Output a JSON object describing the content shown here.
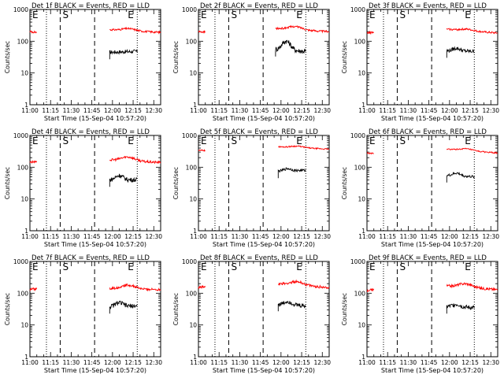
{
  "figure": {
    "xlabel": "Start Time (15-Sep-04 10:57:20)",
    "ylabel": "Counts/sec",
    "x_ticks": [
      "11:00",
      "11:15",
      "11:30",
      "11:45",
      "12:00",
      "12:15",
      "12:30"
    ],
    "y_ticks": [
      "1",
      "10",
      "100",
      "1000"
    ],
    "marker_labels": {
      "E_left": "E",
      "S": "S",
      "E_right": "E"
    },
    "colors": {
      "events": "#000000",
      "lld": "#ff0000",
      "axes": "#000000",
      "background": "#ffffff"
    }
  },
  "chart_data": [
    {
      "type": "line",
      "title": "Det 1f BLACK = Events, RED = LLD",
      "yscale": "log",
      "ylim": [
        1,
        1000
      ],
      "xlim": [
        "11:00",
        "12:35"
      ],
      "series": [
        {
          "name": "Events",
          "color": "#000000",
          "x_range": [
            "11:58",
            "12:18"
          ],
          "start": 45,
          "end": 48,
          "jitter": 0.06
        },
        {
          "name": "LLD",
          "color": "#ff0000",
          "x_range": [
            "11:00",
            "11:05"
          ],
          "start": 200,
          "end": 190,
          "jitter": 0.03
        },
        {
          "name": "LLD",
          "color": "#ff0000",
          "x_range": [
            "11:58",
            "12:35"
          ],
          "start": 230,
          "end": 190,
          "jitter": 0.03,
          "bump": 250
        }
      ],
      "markers": [
        {
          "time": "11:12",
          "style": "dotted",
          "label": "E"
        },
        {
          "time": "11:22",
          "style": "dashed",
          "label": "S"
        },
        {
          "time": "11:47",
          "style": "dashed",
          "label": ""
        },
        {
          "time": "12:18",
          "style": "dotted",
          "label": "E"
        }
      ]
    },
    {
      "type": "line",
      "title": "Det 2f BLACK = Events, RED = LLD",
      "yscale": "log",
      "ylim": [
        1,
        1000
      ],
      "xlim": [
        "11:00",
        "12:35"
      ],
      "series": [
        {
          "name": "Events",
          "color": "#000000",
          "x_range": [
            "11:56",
            "12:18"
          ],
          "start": 55,
          "end": 48,
          "jitter": 0.08,
          "bump": 100
        },
        {
          "name": "LLD",
          "color": "#ff0000",
          "x_range": [
            "11:00",
            "11:05"
          ],
          "start": 200,
          "end": 195,
          "jitter": 0.03
        },
        {
          "name": "LLD",
          "color": "#ff0000",
          "x_range": [
            "11:56",
            "12:35"
          ],
          "start": 250,
          "end": 200,
          "jitter": 0.03,
          "bump": 290
        }
      ],
      "markers": [
        {
          "time": "11:12",
          "style": "dotted",
          "label": "E"
        },
        {
          "time": "11:22",
          "style": "dashed",
          "label": "S"
        },
        {
          "time": "11:47",
          "style": "dashed",
          "label": ""
        },
        {
          "time": "12:18",
          "style": "dotted",
          "label": "E"
        }
      ]
    },
    {
      "type": "line",
      "title": "Det 3f BLACK = Events, RED = LLD",
      "yscale": "log",
      "ylim": [
        1,
        1000
      ],
      "xlim": [
        "11:00",
        "12:35"
      ],
      "series": [
        {
          "name": "Events",
          "color": "#000000",
          "x_range": [
            "11:58",
            "12:18"
          ],
          "start": 50,
          "end": 48,
          "jitter": 0.06,
          "bump": 60
        },
        {
          "name": "LLD",
          "color": "#ff0000",
          "x_range": [
            "11:00",
            "11:05"
          ],
          "start": 180,
          "end": 190,
          "jitter": 0.03
        },
        {
          "name": "LLD",
          "color": "#ff0000",
          "x_range": [
            "11:58",
            "12:35"
          ],
          "start": 240,
          "end": 180,
          "jitter": 0.03,
          "bump": 240
        }
      ],
      "markers": [
        {
          "time": "11:12",
          "style": "dotted",
          "label": "E"
        },
        {
          "time": "11:22",
          "style": "dashed",
          "label": "S"
        },
        {
          "time": "11:47",
          "style": "dashed",
          "label": ""
        },
        {
          "time": "12:18",
          "style": "dotted",
          "label": "E"
        }
      ]
    },
    {
      "type": "line",
      "title": "Det 4f BLACK = Events, RED = LLD",
      "yscale": "log",
      "ylim": [
        1,
        1000
      ],
      "xlim": [
        "11:00",
        "12:35"
      ],
      "series": [
        {
          "name": "Events",
          "color": "#000000",
          "x_range": [
            "11:58",
            "12:18"
          ],
          "start": 40,
          "end": 40,
          "jitter": 0.07,
          "bump": 55
        },
        {
          "name": "LLD",
          "color": "#ff0000",
          "x_range": [
            "11:00",
            "11:05"
          ],
          "start": 140,
          "end": 150,
          "jitter": 0.04
        },
        {
          "name": "LLD",
          "color": "#ff0000",
          "x_range": [
            "11:58",
            "12:35"
          ],
          "start": 170,
          "end": 140,
          "jitter": 0.04,
          "bump": 210
        }
      ],
      "markers": [
        {
          "time": "11:12",
          "style": "dotted",
          "label": "E"
        },
        {
          "time": "11:22",
          "style": "dashed",
          "label": "S"
        },
        {
          "time": "11:47",
          "style": "dashed",
          "label": ""
        },
        {
          "time": "12:18",
          "style": "dotted",
          "label": "E"
        }
      ]
    },
    {
      "type": "line",
      "title": "Det 5f BLACK = Events, RED = LLD",
      "yscale": "log",
      "ylim": [
        1,
        1000
      ],
      "xlim": [
        "11:00",
        "12:35"
      ],
      "series": [
        {
          "name": "Events",
          "color": "#000000",
          "x_range": [
            "11:58",
            "12:18"
          ],
          "start": 75,
          "end": 80,
          "jitter": 0.04,
          "bump": 90
        },
        {
          "name": "LLD",
          "color": "#ff0000",
          "x_range": [
            "11:00",
            "11:05"
          ],
          "start": 340,
          "end": 335,
          "jitter": 0.02
        },
        {
          "name": "LLD",
          "color": "#ff0000",
          "x_range": [
            "11:58",
            "12:35"
          ],
          "start": 440,
          "end": 370,
          "jitter": 0.02,
          "bump": 460
        }
      ],
      "markers": [
        {
          "time": "11:12",
          "style": "dotted",
          "label": "E"
        },
        {
          "time": "11:22",
          "style": "dashed",
          "label": "S"
        },
        {
          "time": "11:47",
          "style": "dashed",
          "label": ""
        },
        {
          "time": "12:18",
          "style": "dotted",
          "label": "E"
        }
      ]
    },
    {
      "type": "line",
      "title": "Det 6f BLACK = Events, RED = LLD",
      "yscale": "log",
      "ylim": [
        1,
        1000
      ],
      "xlim": [
        "11:00",
        "12:35"
      ],
      "series": [
        {
          "name": "Events",
          "color": "#000000",
          "x_range": [
            "11:58",
            "12:18"
          ],
          "start": 55,
          "end": 50,
          "jitter": 0.04,
          "bump": 65
        },
        {
          "name": "LLD",
          "color": "#ff0000",
          "x_range": [
            "11:00",
            "11:05"
          ],
          "start": 280,
          "end": 270,
          "jitter": 0.02
        },
        {
          "name": "LLD",
          "color": "#ff0000",
          "x_range": [
            "11:58",
            "12:35"
          ],
          "start": 370,
          "end": 280,
          "jitter": 0.02,
          "bump": 380
        }
      ],
      "markers": [
        {
          "time": "11:12",
          "style": "dotted",
          "label": "E"
        },
        {
          "time": "11:22",
          "style": "dashed",
          "label": "S"
        },
        {
          "time": "11:47",
          "style": "dashed",
          "label": ""
        },
        {
          "time": "12:18",
          "style": "dotted",
          "label": "E"
        }
      ]
    },
    {
      "type": "line",
      "title": "Det 7f BLACK = Events, RED = LLD",
      "yscale": "log",
      "ylim": [
        1,
        1000
      ],
      "xlim": [
        "11:00",
        "12:35"
      ],
      "series": [
        {
          "name": "Events",
          "color": "#000000",
          "x_range": [
            "11:58",
            "12:18"
          ],
          "start": 38,
          "end": 40,
          "jitter": 0.07,
          "bump": 50
        },
        {
          "name": "LLD",
          "color": "#ff0000",
          "x_range": [
            "11:00",
            "11:05"
          ],
          "start": 130,
          "end": 140,
          "jitter": 0.04
        },
        {
          "name": "LLD",
          "color": "#ff0000",
          "x_range": [
            "11:58",
            "12:35"
          ],
          "start": 140,
          "end": 130,
          "jitter": 0.04,
          "bump": 180
        }
      ],
      "markers": [
        {
          "time": "11:12",
          "style": "dotted",
          "label": "E"
        },
        {
          "time": "11:22",
          "style": "dashed",
          "label": "S"
        },
        {
          "time": "11:47",
          "style": "dashed",
          "label": ""
        },
        {
          "time": "12:18",
          "style": "dotted",
          "label": "E"
        }
      ]
    },
    {
      "type": "line",
      "title": "Det 8f BLACK = Events, RED = LLD",
      "yscale": "log",
      "ylim": [
        1,
        1000
      ],
      "xlim": [
        "11:00",
        "12:35"
      ],
      "series": [
        {
          "name": "Events",
          "color": "#000000",
          "x_range": [
            "11:58",
            "12:18"
          ],
          "start": 45,
          "end": 40,
          "jitter": 0.07,
          "bump": 55
        },
        {
          "name": "LLD",
          "color": "#ff0000",
          "x_range": [
            "11:00",
            "11:05"
          ],
          "start": 150,
          "end": 160,
          "jitter": 0.04
        },
        {
          "name": "LLD",
          "color": "#ff0000",
          "x_range": [
            "11:58",
            "12:35"
          ],
          "start": 200,
          "end": 150,
          "jitter": 0.04,
          "bump": 230
        }
      ],
      "markers": [
        {
          "time": "11:12",
          "style": "dotted",
          "label": "E"
        },
        {
          "time": "11:22",
          "style": "dashed",
          "label": "S"
        },
        {
          "time": "11:47",
          "style": "dashed",
          "label": ""
        },
        {
          "time": "12:18",
          "style": "dotted",
          "label": "E"
        }
      ]
    },
    {
      "type": "line",
      "title": "Det 9f BLACK = Events, RED = LLD",
      "yscale": "log",
      "ylim": [
        1,
        1000
      ],
      "xlim": [
        "11:00",
        "12:35"
      ],
      "series": [
        {
          "name": "Events",
          "color": "#000000",
          "x_range": [
            "11:58",
            "12:18"
          ],
          "start": 38,
          "end": 35,
          "jitter": 0.07,
          "bump": 45
        },
        {
          "name": "LLD",
          "color": "#ff0000",
          "x_range": [
            "11:00",
            "11:05"
          ],
          "start": 120,
          "end": 130,
          "jitter": 0.04
        },
        {
          "name": "LLD",
          "color": "#ff0000",
          "x_range": [
            "11:58",
            "12:35"
          ],
          "start": 170,
          "end": 130,
          "jitter": 0.04,
          "bump": 200
        }
      ],
      "markers": [
        {
          "time": "11:12",
          "style": "dotted",
          "label": "E"
        },
        {
          "time": "11:22",
          "style": "dashed",
          "label": "S"
        },
        {
          "time": "11:47",
          "style": "dashed",
          "label": ""
        },
        {
          "time": "12:18",
          "style": "dotted",
          "label": "E"
        }
      ]
    }
  ]
}
